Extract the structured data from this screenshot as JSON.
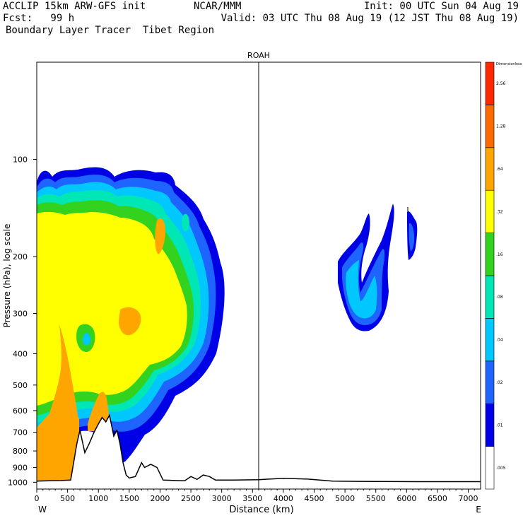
{
  "header": {
    "model": "ACCLIP 15km ARW-GFS init",
    "forecast": "Fcst:   99 h",
    "field": "Boundary Layer Tracer  Tibet Region",
    "org": "NCAR/MMM",
    "init": "Init: 00 UTC Sun 04 Aug 19",
    "valid": "Valid: 03 UTC Thu 08 Aug 19 (12 JST Thu 08 Aug 19)"
  },
  "chart_data": {
    "type": "contour",
    "title": "ROAH",
    "xlabel": "Distance (km)",
    "ylabel": "Pressure (hPa), log scale",
    "xlim": [
      0,
      7200
    ],
    "ylim": [
      1050,
      50
    ],
    "yscale": "log",
    "x_ticks": [
      0,
      500,
      1000,
      1500,
      2000,
      2500,
      3000,
      3500,
      4000,
      4500,
      5000,
      5500,
      6000,
      6500,
      7000
    ],
    "y_ticks": [
      100,
      200,
      300,
      400,
      500,
      600,
      700,
      800,
      900,
      1000
    ],
    "x_end_labels": {
      "left": "W",
      "right": "E"
    },
    "marker_line_km": 3600,
    "colorbar": {
      "title": "Dimensionless",
      "levels": [
        ".005",
        ".01",
        ".02",
        ".04",
        ".08",
        ".16",
        ".32",
        ".64",
        "1.28",
        "2.56"
      ],
      "colors": [
        "#ffffff",
        "#0000e6",
        "#1e64ff",
        "#00c8ff",
        "#00e6b4",
        "#32d21e",
        "#ffff00",
        "#ffa500",
        "#ff6a00",
        "#ff2800"
      ]
    },
    "terrain": [
      {
        "x": 0,
        "p": 992
      },
      {
        "x": 200,
        "p": 990
      },
      {
        "x": 400,
        "p": 988
      },
      {
        "x": 550,
        "p": 985
      },
      {
        "x": 650,
        "p": 760
      },
      {
        "x": 700,
        "p": 690
      },
      {
        "x": 780,
        "p": 810
      },
      {
        "x": 850,
        "p": 760
      },
      {
        "x": 930,
        "p": 700
      },
      {
        "x": 1000,
        "p": 660
      },
      {
        "x": 1060,
        "p": 630
      },
      {
        "x": 1120,
        "p": 650
      },
      {
        "x": 1180,
        "p": 620
      },
      {
        "x": 1250,
        "p": 720
      },
      {
        "x": 1300,
        "p": 690
      },
      {
        "x": 1350,
        "p": 760
      },
      {
        "x": 1400,
        "p": 870
      },
      {
        "x": 1450,
        "p": 950
      },
      {
        "x": 1500,
        "p": 970
      },
      {
        "x": 1600,
        "p": 960
      },
      {
        "x": 1700,
        "p": 870
      },
      {
        "x": 1750,
        "p": 900
      },
      {
        "x": 1850,
        "p": 880
      },
      {
        "x": 1950,
        "p": 900
      },
      {
        "x": 2050,
        "p": 985
      },
      {
        "x": 2400,
        "p": 990
      },
      {
        "x": 2500,
        "p": 960
      },
      {
        "x": 2600,
        "p": 980
      },
      {
        "x": 2700,
        "p": 950
      },
      {
        "x": 2800,
        "p": 960
      },
      {
        "x": 2900,
        "p": 985
      },
      {
        "x": 3200,
        "p": 985
      },
      {
        "x": 3600,
        "p": 982
      },
      {
        "x": 4000,
        "p": 972
      },
      {
        "x": 4400,
        "p": 978
      },
      {
        "x": 4800,
        "p": 992
      },
      {
        "x": 5500,
        "p": 995
      },
      {
        "x": 6200,
        "p": 996
      },
      {
        "x": 7200,
        "p": 996
      }
    ]
  }
}
